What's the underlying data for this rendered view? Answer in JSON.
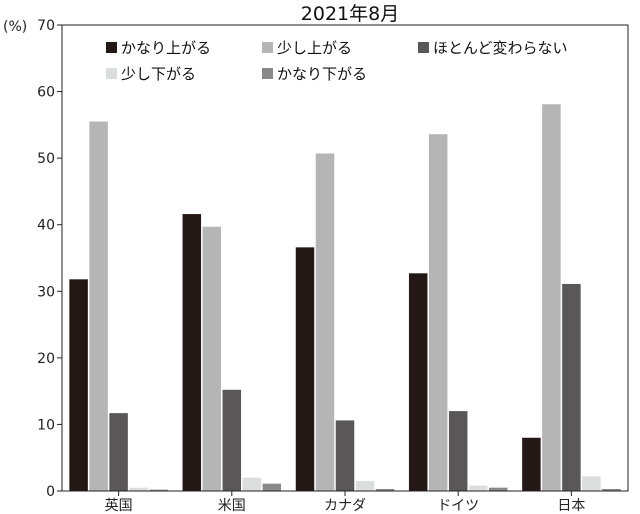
{
  "chart_data": {
    "type": "bar",
    "title": "2021年8月",
    "ylabel": "(%)",
    "xlabel": "",
    "ylim": [
      0,
      70
    ],
    "yticks": [
      0,
      10,
      20,
      30,
      40,
      50,
      60,
      70
    ],
    "grid": false,
    "legend_position": "top",
    "categories": [
      "英国",
      "米国",
      "カナダ",
      "ドイツ",
      "日本"
    ],
    "series": [
      {
        "name": "かなり上がる",
        "color": "#231815",
        "values": [
          31.8,
          41.6,
          36.6,
          32.7,
          8.0
        ]
      },
      {
        "name": "少し上がる",
        "color": "#b5b5b6",
        "values": [
          55.5,
          39.7,
          50.7,
          53.6,
          58.1
        ]
      },
      {
        "name": "ほとんど変わらない",
        "color": "#595757",
        "values": [
          11.7,
          15.2,
          10.6,
          12.0,
          31.1
        ]
      },
      {
        "name": "少し下がる",
        "color": "#dcdddd",
        "values": [
          0.5,
          2.0,
          1.5,
          0.8,
          2.2
        ]
      },
      {
        "name": "かなり下がる",
        "color": "#898989",
        "values": [
          0.2,
          1.1,
          0.3,
          0.5,
          0.3
        ]
      }
    ]
  }
}
